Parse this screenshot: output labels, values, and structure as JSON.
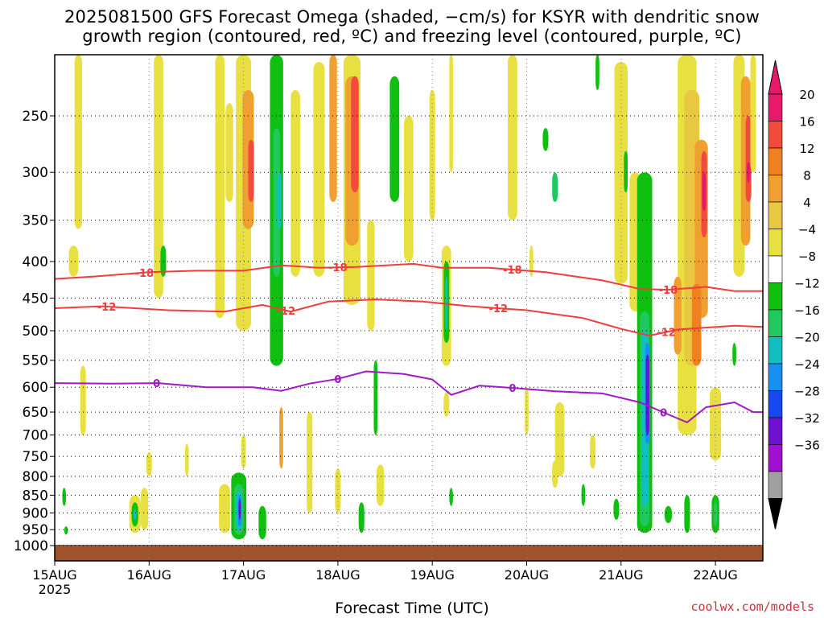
{
  "title_line1": "2025081500 GFS Forecast Omega (shaded, −cm/s) for KSYR with dendritic snow",
  "title_line2": "growth region (contoured, red, ºC) and freezing level (contoured, purple, ºC)",
  "x_axis_title": "Forecast Time (UTC)",
  "credit": "coolwx.com/models",
  "chart_data": {
    "type": "heatmap",
    "x_ticks": [
      "15AUG",
      "16AUG",
      "17AUG",
      "18AUG",
      "19AUG",
      "20AUG",
      "21AUG",
      "22AUG"
    ],
    "x_sublabel": "2025",
    "y_ticks": [
      250,
      300,
      350,
      400,
      450,
      500,
      550,
      600,
      650,
      700,
      750,
      800,
      850,
      900,
      950,
      1000
    ],
    "y_range": [
      1000,
      200
    ],
    "colorbar": {
      "labels": [
        "20",
        "16",
        "12",
        "8",
        "4",
        "−4",
        "−8",
        "−12",
        "−16",
        "−20",
        "−24",
        "−28",
        "−32",
        "−36"
      ],
      "colors": [
        "#e8186a",
        "#f24a3c",
        "#f08020",
        "#f0a030",
        "#e8c840",
        "#e8e040",
        "#ffffff",
        "#10c010",
        "#20c860",
        "#10c0c0",
        "#1890f0",
        "#1848f0",
        "#7010d0",
        "#a010d0",
        "#a0a0a0"
      ],
      "top_arrow": "#e8186a",
      "bottom_arrow": "#000000"
    },
    "contours": [
      {
        "label": "-18",
        "color": "#f03c3c",
        "points": [
          [
            0,
            423
          ],
          [
            0.4,
            420
          ],
          [
            1.0,
            414
          ],
          [
            1.5,
            412
          ],
          [
            2.0,
            412
          ],
          [
            2.4,
            405
          ],
          [
            2.8,
            408
          ],
          [
            3.2,
            407
          ],
          [
            3.8,
            403
          ],
          [
            4.1,
            408
          ],
          [
            4.6,
            408
          ],
          [
            5.2,
            414
          ],
          [
            5.8,
            425
          ],
          [
            6.2,
            437
          ],
          [
            6.5,
            438
          ],
          [
            6.9,
            434
          ],
          [
            7.2,
            440
          ],
          [
            7.5,
            440
          ]
        ],
        "label_days": [
          0.95,
          3.0,
          4.85,
          6.5
        ]
      },
      {
        "label": "-12",
        "color": "#f03c3c",
        "points": [
          [
            0,
            465
          ],
          [
            0.5,
            462
          ],
          [
            1.2,
            468
          ],
          [
            1.8,
            470
          ],
          [
            2.2,
            460
          ],
          [
            2.5,
            470
          ],
          [
            2.9,
            455
          ],
          [
            3.4,
            452
          ],
          [
            3.9,
            455
          ],
          [
            4.4,
            462
          ],
          [
            5.0,
            468
          ],
          [
            5.6,
            480
          ],
          [
            6.0,
            497
          ],
          [
            6.3,
            508
          ],
          [
            6.6,
            498
          ],
          [
            6.9,
            495
          ],
          [
            7.2,
            492
          ],
          [
            7.5,
            494
          ]
        ],
        "label_days": [
          0.55,
          2.45,
          4.7,
          6.48
        ]
      },
      {
        "label": "0",
        "color": "#a018c8",
        "points": [
          [
            0,
            592
          ],
          [
            0.6,
            593
          ],
          [
            1.1,
            592
          ],
          [
            1.6,
            600
          ],
          [
            2.1,
            600
          ],
          [
            2.4,
            607
          ],
          [
            2.7,
            593
          ],
          [
            3.0,
            584
          ],
          [
            3.3,
            570
          ],
          [
            3.7,
            575
          ],
          [
            4.0,
            585
          ],
          [
            4.2,
            615
          ],
          [
            4.5,
            597
          ],
          [
            4.9,
            602
          ],
          [
            5.3,
            608
          ],
          [
            5.8,
            612
          ],
          [
            6.2,
            630
          ],
          [
            6.5,
            655
          ],
          [
            6.7,
            672
          ],
          [
            6.9,
            640
          ],
          [
            7.2,
            630
          ],
          [
            7.4,
            650
          ],
          [
            7.5,
            650
          ]
        ],
        "label_days": [
          1.08,
          3.0,
          4.85,
          6.45
        ]
      }
    ]
  }
}
